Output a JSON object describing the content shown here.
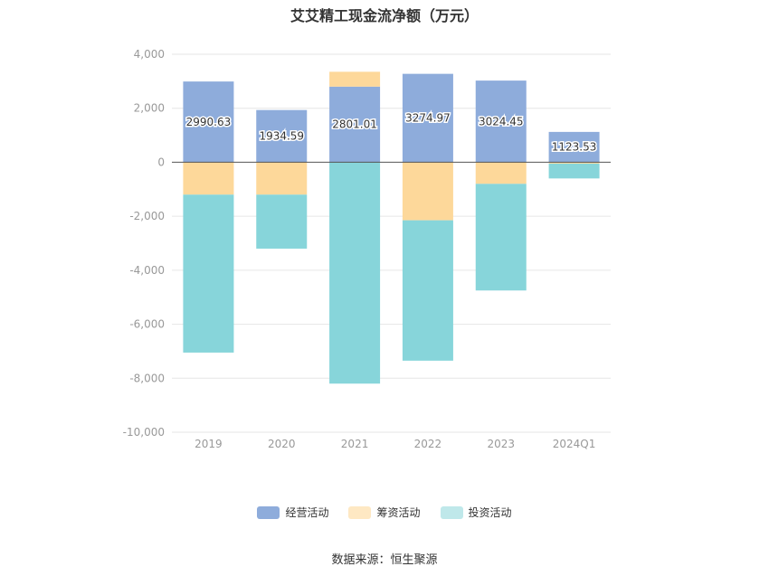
{
  "chart_data": {
    "type": "bar",
    "stacked": true,
    "title": "艾艾精工现金流净额（万元）",
    "categories": [
      "2019",
      "2020",
      "2021",
      "2022",
      "2023",
      "2024Q1"
    ],
    "ylim": [
      -10000,
      4000
    ],
    "yticks": [
      4000,
      2000,
      0,
      -2000,
      -4000,
      -6000,
      -8000,
      -10000
    ],
    "ytick_labels": [
      "4,000",
      "2,000",
      "0",
      "-2,000",
      "-4,000",
      "-6,000",
      "-8,000",
      "-10,000"
    ],
    "grid": true,
    "legend_position": "bottom",
    "series": [
      {
        "name": "经营活动",
        "color": "#8eacdb",
        "values": [
          2990.63,
          1934.59,
          2801.01,
          3274.97,
          3024.45,
          1123.53
        ],
        "labels": [
          "2990.63",
          "1934.59",
          "2801.01",
          "3274.97",
          "3024.45",
          "1123.53"
        ]
      },
      {
        "name": "筹资活动",
        "color": "#fdd89a",
        "values": [
          -1200,
          -1200,
          550,
          -2150,
          -800,
          -50
        ]
      },
      {
        "name": "投资活动",
        "color": "#87d5da",
        "values": [
          -5850,
          -2000,
          -8200,
          -5200,
          -3950,
          -550
        ]
      }
    ]
  },
  "legend": {
    "items": [
      {
        "label": "经营活动",
        "color": "#8eacdb"
      },
      {
        "label": "筹资活动",
        "color": "#fee8c3"
      },
      {
        "label": "投资活动",
        "color": "#bfe8ea"
      }
    ]
  },
  "source": "数据来源：恒生聚源"
}
